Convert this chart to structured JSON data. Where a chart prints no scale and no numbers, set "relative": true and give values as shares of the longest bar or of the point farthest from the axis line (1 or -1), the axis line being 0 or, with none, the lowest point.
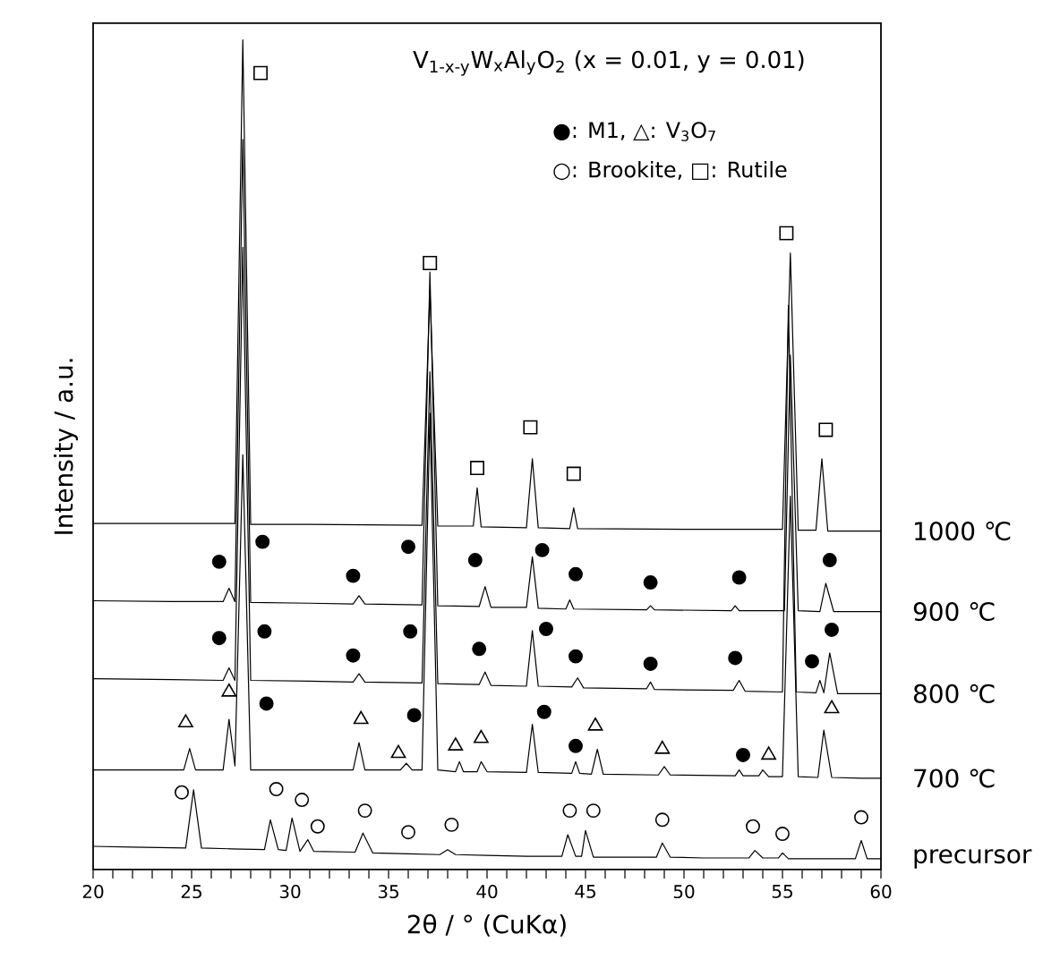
{
  "chart_data": {
    "type": "line",
    "relative": true,
    "tick_labels": "x",
    "title": "V$_{1-x-y}$W$_{x}$Al$_{y}$O$_{2}$  (x = 0.01, y = 0.01)",
    "annotations": [
      "●: M1, △: V$_{3}$O$_{7}$",
      "○: Brookite, □: Rutile"
    ],
    "xlabel": "2θ / °  (CuKα)",
    "ylabel": "Intensity / a.u.",
    "xlim": [
      20,
      60
    ],
    "xticks": [
      20,
      25,
      30,
      35,
      40,
      45,
      50,
      55,
      60
    ],
    "series": [
      {
        "name": "precursor",
        "color": "#000000",
        "x": [
          20,
          22,
          24.7,
          25.1,
          25.5,
          27,
          28.7,
          29.0,
          29.4,
          29.8,
          30.1,
          30.5,
          30.9,
          31.2,
          33.3,
          33.7,
          34.2,
          36,
          37.6,
          38.0,
          38.4,
          40,
          42,
          43.8,
          44.1,
          44.5,
          44.8,
          45.0,
          45.4,
          47,
          48.6,
          48.9,
          49.3,
          51,
          53.3,
          53.6,
          54,
          54.8,
          55.0,
          55.3,
          57,
          58.7,
          59.0,
          59.3,
          60
        ],
        "values": [
          0.028,
          0.027,
          0.026,
          0.096,
          0.026,
          0.025,
          0.024,
          0.06,
          0.024,
          0.023,
          0.062,
          0.022,
          0.036,
          0.022,
          0.021,
          0.044,
          0.02,
          0.019,
          0.018,
          0.024,
          0.018,
          0.017,
          0.016,
          0.016,
          0.042,
          0.016,
          0.016,
          0.047,
          0.015,
          0.015,
          0.015,
          0.032,
          0.015,
          0.014,
          0.014,
          0.023,
          0.014,
          0.014,
          0.02,
          0.013,
          0.013,
          0.013,
          0.035,
          0.013,
          0.013
        ]
      },
      {
        "name": "700 ℃",
        "color": "#000000",
        "x": [
          20,
          22,
          24.6,
          24.9,
          25.2,
          26.6,
          26.9,
          27.2,
          27.6,
          28.0,
          30,
          33.2,
          33.5,
          33.8,
          35.6,
          35.9,
          36.2,
          36.7,
          37.1,
          37.5,
          38.4,
          38.6,
          38.8,
          39.5,
          39.7,
          40.0,
          42.0,
          42.3,
          42.6,
          44.3,
          44.5,
          44.7,
          45.3,
          45.6,
          45.9,
          48.7,
          49.0,
          49.3,
          52.6,
          52.8,
          53.0,
          53.8,
          54.0,
          54.3,
          55.0,
          55.4,
          55.8,
          56.8,
          57.1,
          57.5,
          59,
          60
        ],
        "values": [
          0.12,
          0.12,
          0.12,
          0.146,
          0.12,
          0.12,
          0.181,
          0.125,
          0.5,
          0.12,
          0.12,
          0.12,
          0.153,
          0.12,
          0.12,
          0.128,
          0.12,
          0.12,
          0.55,
          0.12,
          0.118,
          0.13,
          0.118,
          0.118,
          0.13,
          0.118,
          0.117,
          0.175,
          0.117,
          0.116,
          0.13,
          0.116,
          0.115,
          0.145,
          0.115,
          0.114,
          0.124,
          0.114,
          0.113,
          0.12,
          0.113,
          0.113,
          0.12,
          0.112,
          0.112,
          0.45,
          0.112,
          0.111,
          0.168,
          0.111,
          0.11,
          0.11
        ]
      },
      {
        "name": "800 ℃",
        "color": "#000000",
        "x": [
          20,
          24,
          26.6,
          26.9,
          27.2,
          27.6,
          28.0,
          31,
          33.2,
          33.5,
          33.8,
          36.7,
          37.1,
          37.5,
          39.6,
          39.9,
          40.2,
          42.0,
          42.3,
          42.6,
          44.3,
          44.6,
          44.9,
          48.1,
          48.3,
          48.5,
          52.5,
          52.8,
          53.1,
          55.0,
          55.3,
          55.7,
          56.7,
          56.9,
          57.1,
          57.4,
          57.8,
          60
        ],
        "values": [
          0.23,
          0.229,
          0.228,
          0.243,
          0.228,
          0.75,
          0.228,
          0.227,
          0.226,
          0.236,
          0.226,
          0.225,
          0.6,
          0.224,
          0.223,
          0.238,
          0.222,
          0.221,
          0.288,
          0.221,
          0.22,
          0.231,
          0.219,
          0.218,
          0.226,
          0.217,
          0.216,
          0.228,
          0.215,
          0.214,
          0.68,
          0.214,
          0.213,
          0.228,
          0.213,
          0.261,
          0.212,
          0.212
        ]
      },
      {
        "name": "900 ℃",
        "color": "#000000",
        "x": [
          20,
          24,
          26.6,
          26.9,
          27.2,
          27.6,
          28.0,
          31,
          33.2,
          33.5,
          33.8,
          36.7,
          37.1,
          37.5,
          39.6,
          39.9,
          40.2,
          42.0,
          42.3,
          42.6,
          44.0,
          44.2,
          44.4,
          48.1,
          48.3,
          48.5,
          52.4,
          52.6,
          52.8,
          55.1,
          55.4,
          55.8,
          56.9,
          57.2,
          57.6,
          60
        ],
        "values": [
          0.324,
          0.323,
          0.323,
          0.339,
          0.323,
          0.88,
          0.322,
          0.321,
          0.32,
          0.33,
          0.32,
          0.319,
          0.72,
          0.318,
          0.317,
          0.341,
          0.316,
          0.316,
          0.377,
          0.315,
          0.314,
          0.325,
          0.314,
          0.313,
          0.318,
          0.313,
          0.312,
          0.318,
          0.312,
          0.312,
          0.62,
          0.312,
          0.311,
          0.345,
          0.311,
          0.311
        ]
      },
      {
        "name": "1000 ℃",
        "color": "#000000",
        "x": [
          20,
          24,
          27.2,
          27.6,
          28.0,
          31,
          36.7,
          37.1,
          37.5,
          39.3,
          39.5,
          39.7,
          42.0,
          42.3,
          42.6,
          44.2,
          44.4,
          44.6,
          50,
          55.0,
          55.4,
          55.8,
          56.7,
          57.0,
          57.3,
          60
        ],
        "values": [
          0.417,
          0.417,
          0.417,
          1.0,
          0.416,
          0.416,
          0.415,
          0.698,
          0.414,
          0.414,
          0.46,
          0.413,
          0.412,
          0.495,
          0.412,
          0.411,
          0.436,
          0.411,
          0.41,
          0.41,
          0.743,
          0.409,
          0.409,
          0.495,
          0.408,
          0.408
        ]
      },
      {
        "type": "scatter",
        "marker": "square",
        "color": "#ffffff",
        "x": [
          28.5,
          37.1,
          39.5,
          42.2,
          44.4,
          55.2,
          57.2
        ],
        "values": [
          0.96,
          0.731,
          0.484,
          0.533,
          0.477,
          0.767,
          0.53
        ]
      },
      {
        "type": "scatter",
        "marker": "circle",
        "color": "#000000",
        "x": [
          26.4,
          28.6,
          33.2,
          36.0,
          39.4,
          42.8,
          44.5,
          48.3,
          52.8,
          57.4,
          26.4,
          28.7,
          33.2,
          36.1,
          39.6,
          43.0,
          44.5,
          48.3,
          52.6,
          56.5,
          57.5,
          28.8,
          36.3,
          42.9,
          44.5,
          53.0
        ],
        "values": [
          0.371,
          0.395,
          0.354,
          0.389,
          0.373,
          0.385,
          0.356,
          0.346,
          0.352,
          0.373,
          0.279,
          0.287,
          0.258,
          0.287,
          0.266,
          0.29,
          0.257,
          0.248,
          0.255,
          0.251,
          0.289,
          0.2,
          0.186,
          0.19,
          0.149,
          0.138
        ]
      },
      {
        "type": "scatter",
        "marker": "triangle",
        "color": "#ffffff",
        "x": [
          24.7,
          26.9,
          33.6,
          35.5,
          38.4,
          39.7,
          45.5,
          48.9,
          54.3,
          57.5
        ],
        "values": [
          0.177,
          0.214,
          0.181,
          0.14,
          0.149,
          0.158,
          0.173,
          0.145,
          0.138,
          0.194
        ]
      },
      {
        "type": "scatter",
        "marker": "circle",
        "color": "#ffffff",
        "x": [
          24.5,
          29.3,
          30.6,
          31.4,
          33.8,
          36.0,
          38.2,
          44.2,
          45.4,
          48.9,
          53.5,
          55.0,
          59.0
        ],
        "values": [
          0.093,
          0.097,
          0.084,
          0.052,
          0.071,
          0.045,
          0.054,
          0.071,
          0.071,
          0.06,
          0.052,
          0.043,
          0.063
        ]
      }
    ]
  }
}
